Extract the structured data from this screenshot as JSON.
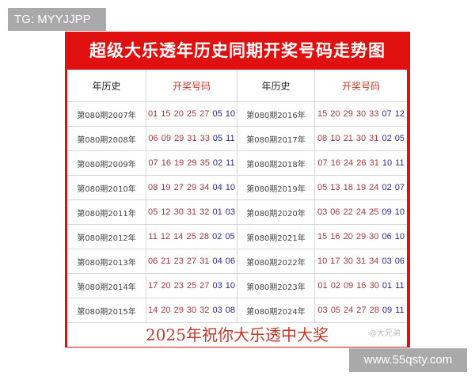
{
  "tag_label": "TG: MYYJJPP",
  "site_label": "www.55qsty.com",
  "title": "超级大乐透年历史同期开奖号码走势图",
  "headers": [
    "年历史",
    "开奖号码",
    "年历史",
    "开奖号码"
  ],
  "left_rows": [
    {
      "period": "第080期2007年",
      "front": "01 15 20 25 27",
      "back": "05 10"
    },
    {
      "period": "第080期2008年",
      "front": "06 09 29 31 33",
      "back": "05 11"
    },
    {
      "period": "第080期2009年",
      "front": "07 16 19 29 35",
      "back": "02 11"
    },
    {
      "period": "第080期2010年",
      "front": "08 19 27 29 34",
      "back": "04 10"
    },
    {
      "period": "第080期2011年",
      "front": "05 12 30 31 32",
      "back": "01 03"
    },
    {
      "period": "第080期2012年",
      "front": "11 12 14 25 28",
      "back": "02 05"
    },
    {
      "period": "第080期2013年",
      "front": "06 21 23 27 31",
      "back": "04 06"
    },
    {
      "period": "第080期2014年",
      "front": "17 20 23 25 27",
      "back": "03 10"
    },
    {
      "period": "第080期2015年",
      "front": "14 20 29 30 32",
      "back": "03 08"
    }
  ],
  "right_rows": [
    {
      "period": "第080期2016年",
      "front": "15 20 29 30 33",
      "back": "07 12"
    },
    {
      "period": "第080期2017年",
      "front": "08 10 21 30 31",
      "back": "02 05"
    },
    {
      "period": "第080期2018年",
      "front": "07 16 24 26 31",
      "back": "10 11"
    },
    {
      "period": "第080期2019年",
      "front": "05 13 18 19 24",
      "back": "02 07"
    },
    {
      "period": "第080期2020年",
      "front": "03 06 22 24 25",
      "back": "09 10"
    },
    {
      "period": "第080期2021年",
      "front": "15 16 20 29 30",
      "back": "06 10"
    },
    {
      "period": "第080期2022年",
      "front": "10 17 30 31 34",
      "back": "03 06"
    },
    {
      "period": "第080期2023年",
      "front": "01 02 09 16 30",
      "back": "01 11"
    },
    {
      "period": "第080期2024年",
      "front": "03 05 24 27 28",
      "back": "09 11"
    }
  ],
  "footer": "2025年祝你大乐透中大奖",
  "watermark": "@大兄弟",
  "colors": {
    "frame": "#e01010",
    "front_numbers": "#a03a3a",
    "back_numbers": "#2a2a8a"
  }
}
